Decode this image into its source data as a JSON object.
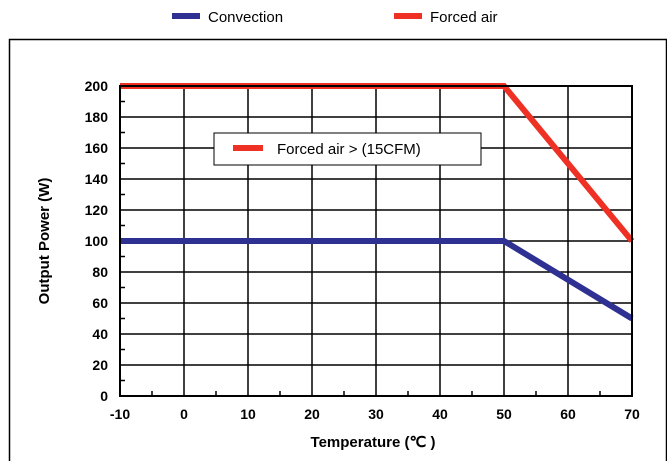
{
  "chart_data": {
    "type": "line",
    "title": "",
    "xlabel": "Temperature (℃ )",
    "ylabel": "Output Power (W)",
    "xlim": [
      -10,
      70
    ],
    "ylim": [
      0,
      200
    ],
    "x_ticks": [
      -10,
      0,
      10,
      20,
      30,
      40,
      50,
      60,
      70
    ],
    "y_ticks": [
      0,
      20,
      40,
      60,
      80,
      100,
      120,
      140,
      160,
      180,
      200
    ],
    "grid": true,
    "legend_position": "top-center",
    "series": [
      {
        "name": "Convection",
        "color": "#2e3192",
        "x": [
          -10,
          50,
          70
        ],
        "y": [
          100,
          100,
          50
        ]
      },
      {
        "name": "Forced air",
        "color": "#ee3124",
        "x": [
          -10,
          50,
          70
        ],
        "y": [
          200,
          200,
          100
        ]
      }
    ],
    "annotation": {
      "text": "Forced air > (15CFM)",
      "color": "#ee3124"
    }
  }
}
